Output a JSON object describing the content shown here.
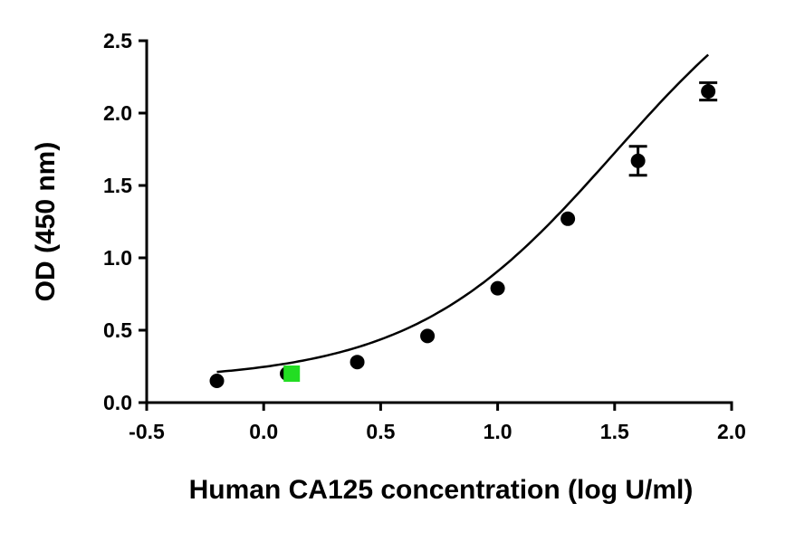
{
  "chart_data": {
    "type": "scatter",
    "title": "",
    "xlabel": "Human CA125 concentration (log U/ml)",
    "ylabel": "OD (450 nm)",
    "xlim": [
      -0.5,
      2.0
    ],
    "ylim": [
      0.0,
      2.5
    ],
    "x_ticks": [
      -0.5,
      0.0,
      0.5,
      1.0,
      1.5,
      2.0
    ],
    "x_tick_labels": [
      "-0.5",
      "0.0",
      "0.5",
      "1.0",
      "1.5",
      "2.0"
    ],
    "y_ticks": [
      0.0,
      0.5,
      1.0,
      1.5,
      2.0,
      2.5
    ],
    "y_tick_labels": [
      "0.0",
      "0.5",
      "1.0",
      "1.5",
      "2.0",
      "2.5"
    ],
    "grid": false,
    "legend": "none",
    "series": [
      {
        "marker": "circle",
        "color": "#000000",
        "x": [
          -0.2,
          0.1,
          0.4,
          0.7,
          1.0,
          1.3,
          1.6,
          1.9
        ],
        "y": [
          0.15,
          0.2,
          0.28,
          0.46,
          0.79,
          1.27,
          1.67,
          2.15
        ],
        "error": [
          0,
          0,
          0,
          0,
          0,
          0,
          0.1,
          0.06
        ]
      },
      {
        "marker": "square",
        "color": "#22dd22",
        "x": [
          0.12
        ],
        "y": [
          0.2
        ]
      }
    ],
    "fit_curve": {
      "type": "4PL",
      "color": "#000000",
      "bottom": 0.15,
      "top": 3.3,
      "log_ec50": 1.5,
      "hill": 1.0,
      "x_range": [
        -0.2,
        1.9
      ]
    }
  }
}
